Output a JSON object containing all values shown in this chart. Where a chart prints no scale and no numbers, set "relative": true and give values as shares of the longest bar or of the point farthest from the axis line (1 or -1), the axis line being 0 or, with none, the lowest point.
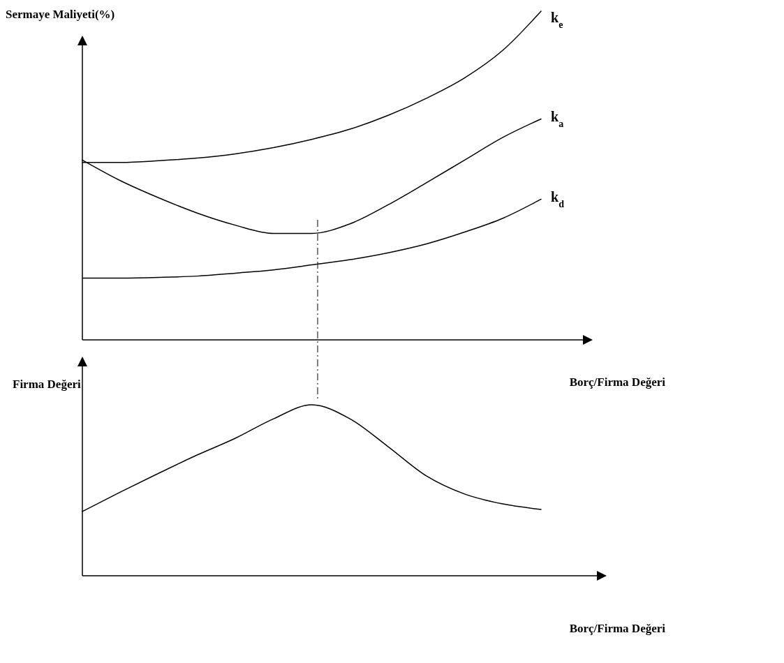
{
  "chart_data": [
    {
      "type": "line",
      "ylabel": "Sermaye Maliyeti(%)",
      "xlabel": "Borç/Firma Değeri",
      "relative": true,
      "legend": false,
      "marker": "none",
      "line_style": "solid",
      "categories": [
        null,
        null,
        null,
        null,
        null,
        null,
        null,
        null,
        null,
        null,
        null,
        null,
        null
      ],
      "series": [
        {
          "name": "k$_{e}$",
          "color": "#000000",
          "values": [
            0.54,
            0.54,
            0.545,
            0.553,
            0.566,
            0.585,
            0.61,
            0.641,
            0.683,
            0.735,
            0.797,
            0.881,
            1
          ]
        },
        {
          "name": "k$_{a}$",
          "color": "#000000",
          "values": [
            0.547,
            0.484,
            0.432,
            0.386,
            0.349,
            0.324,
            0.324,
            0.353,
            0.411,
            0.478,
            0.547,
            0.616,
            0.672
          ]
        },
        {
          "name": "k$_{d}$",
          "color": "#000000",
          "values": [
            0.188,
            0.188,
            0.19,
            0.194,
            0.203,
            0.213,
            0.228,
            0.244,
            0.265,
            0.292,
            0.328,
            0.37,
            0.428
          ]
        }
      ]
    },
    {
      "type": "line",
      "ylabel": "Firma Değeri",
      "xlabel": "Borç/Firma Değeri",
      "relative": true,
      "legend": false,
      "marker": "none",
      "line_style": "solid",
      "categories": [
        null,
        null,
        null,
        null,
        null,
        null,
        null,
        null,
        null,
        null,
        null,
        null,
        null
      ],
      "series": [
        {
          "color": "#000000",
          "values": [
            0.376,
            0.49,
            0.6,
            0.706,
            0.804,
            0.918,
            1,
            0.918,
            0.755,
            0.584,
            0.478,
            0.42,
            0.388
          ]
        }
      ]
    }
  ]
}
